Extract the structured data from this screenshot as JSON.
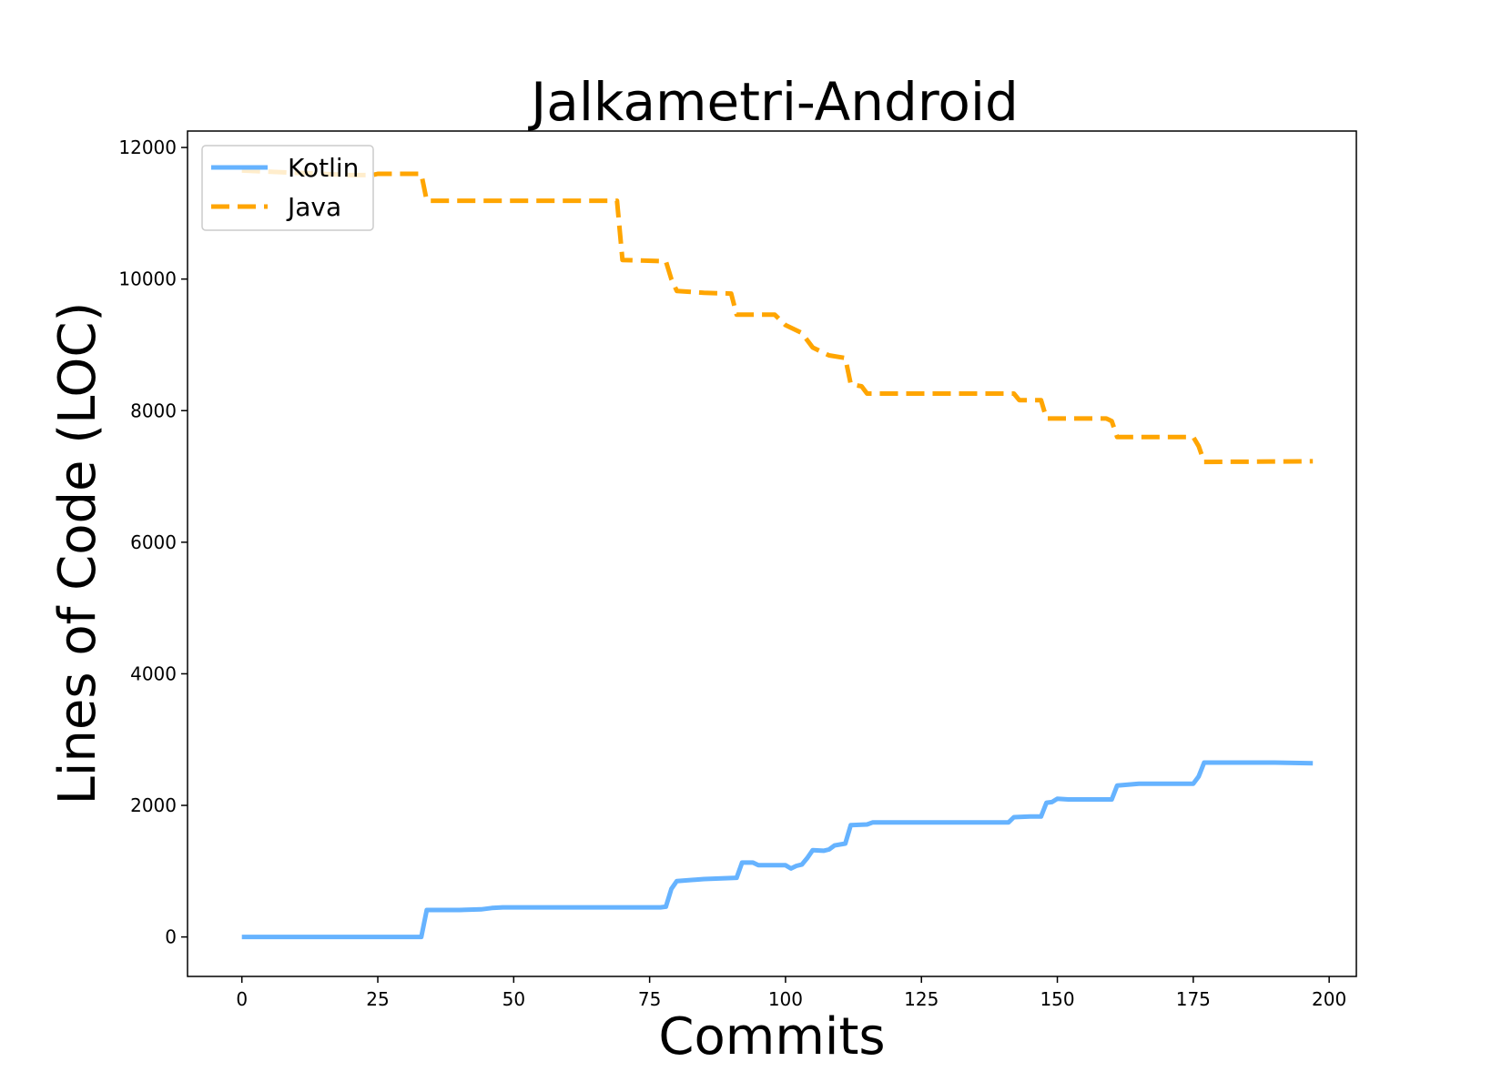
{
  "chart_data": {
    "type": "line",
    "title": "Jalkametri-Android",
    "xlabel": "Commits",
    "ylabel": "Lines of Code (LOC)",
    "xlim": [
      -10,
      205
    ],
    "ylim": [
      -600,
      12250
    ],
    "xticks": [
      0,
      25,
      50,
      75,
      100,
      125,
      150,
      175,
      200
    ],
    "yticks": [
      0,
      2000,
      4000,
      6000,
      8000,
      10000,
      12000
    ],
    "grid": false,
    "legend_position": "top-left",
    "series": [
      {
        "name": "Kotlin",
        "color": "#66b3ff",
        "style": "solid",
        "points": [
          [
            0,
            0
          ],
          [
            33,
            0
          ],
          [
            34,
            410
          ],
          [
            40,
            410
          ],
          [
            44,
            420
          ],
          [
            46,
            440
          ],
          [
            48,
            450
          ],
          [
            77,
            450
          ],
          [
            78,
            460
          ],
          [
            79,
            730
          ],
          [
            80,
            850
          ],
          [
            85,
            880
          ],
          [
            91,
            900
          ],
          [
            92,
            1130
          ],
          [
            94,
            1130
          ],
          [
            95,
            1090
          ],
          [
            100,
            1090
          ],
          [
            101,
            1040
          ],
          [
            102,
            1080
          ],
          [
            103,
            1100
          ],
          [
            104,
            1200
          ],
          [
            105,
            1320
          ],
          [
            107,
            1310
          ],
          [
            108,
            1330
          ],
          [
            109,
            1390
          ],
          [
            111,
            1420
          ],
          [
            112,
            1700
          ],
          [
            115,
            1710
          ],
          [
            116,
            1740
          ],
          [
            141,
            1740
          ],
          [
            142,
            1820
          ],
          [
            145,
            1830
          ],
          [
            147,
            1830
          ],
          [
            148,
            2040
          ],
          [
            149,
            2050
          ],
          [
            150,
            2100
          ],
          [
            152,
            2090
          ],
          [
            160,
            2090
          ],
          [
            161,
            2300
          ],
          [
            165,
            2330
          ],
          [
            170,
            2330
          ],
          [
            175,
            2330
          ],
          [
            176,
            2440
          ],
          [
            177,
            2650
          ],
          [
            190,
            2650
          ],
          [
            197,
            2640
          ]
        ]
      },
      {
        "name": "Java",
        "color": "#ffa500",
        "style": "dashed",
        "points": [
          [
            0,
            11650
          ],
          [
            20,
            11580
          ],
          [
            24,
            11580
          ],
          [
            25,
            11600
          ],
          [
            33,
            11600
          ],
          [
            34,
            11190
          ],
          [
            69,
            11190
          ],
          [
            70,
            10290
          ],
          [
            78,
            10270
          ],
          [
            79,
            10000
          ],
          [
            80,
            9820
          ],
          [
            85,
            9790
          ],
          [
            90,
            9780
          ],
          [
            91,
            9460
          ],
          [
            98,
            9460
          ],
          [
            100,
            9300
          ],
          [
            103,
            9180
          ],
          [
            105,
            8960
          ],
          [
            108,
            8840
          ],
          [
            111,
            8800
          ],
          [
            112,
            8400
          ],
          [
            114,
            8370
          ],
          [
            115,
            8260
          ],
          [
            142,
            8260
          ],
          [
            143,
            8160
          ],
          [
            147,
            8160
          ],
          [
            148,
            7880
          ],
          [
            159,
            7880
          ],
          [
            160,
            7840
          ],
          [
            161,
            7600
          ],
          [
            175,
            7600
          ],
          [
            176,
            7460
          ],
          [
            177,
            7220
          ],
          [
            197,
            7230
          ]
        ]
      }
    ]
  }
}
